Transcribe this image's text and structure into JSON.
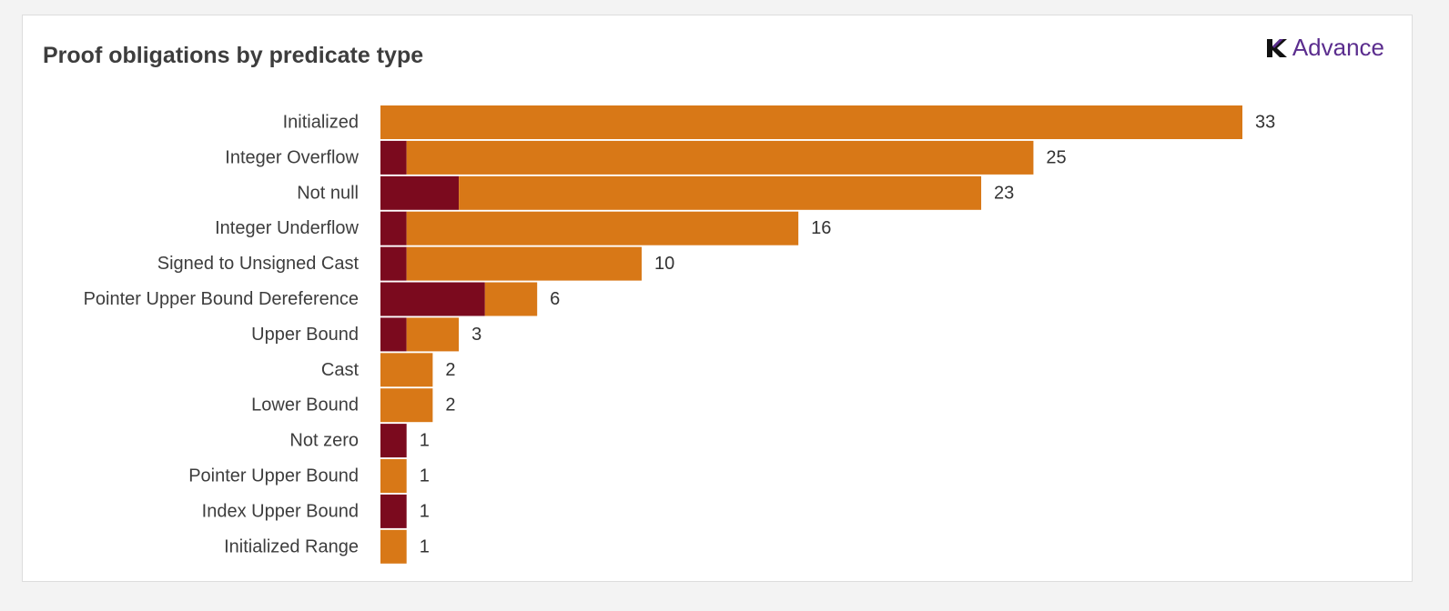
{
  "brand": {
    "name": "Advance",
    "icon": "k-logo-icon",
    "color": "#5b2d8e"
  },
  "chart_data": {
    "type": "bar",
    "orientation": "horizontal",
    "stacked": true,
    "title": "Proof obligations by predicate type",
    "xlabel": "",
    "ylabel": "",
    "grid": false,
    "legend": "none",
    "xlim": [
      0,
      33
    ],
    "categories": [
      "Initialized",
      "Integer Overflow",
      "Not null",
      "Integer Underflow",
      "Signed to Unsigned Cast",
      "Pointer Upper Bound Dereference",
      "Upper Bound",
      "Cast",
      "Lower Bound",
      "Not zero",
      "Pointer Upper Bound",
      "Index Upper Bound",
      "Initialized Range"
    ],
    "series": [
      {
        "name": "dark",
        "color": "#7b0a1e",
        "values": [
          0,
          1,
          3,
          1,
          1,
          4,
          1,
          0,
          0,
          1,
          0,
          1,
          0
        ]
      },
      {
        "name": "orange",
        "color": "#d87817",
        "values": [
          33,
          24,
          20,
          15,
          9,
          2,
          2,
          2,
          2,
          0,
          1,
          0,
          1
        ]
      }
    ],
    "totals": [
      "33",
      "25",
      "23",
      "16",
      "10",
      "6",
      "3",
      "2",
      "2",
      "1",
      "1",
      "1",
      "1"
    ]
  }
}
